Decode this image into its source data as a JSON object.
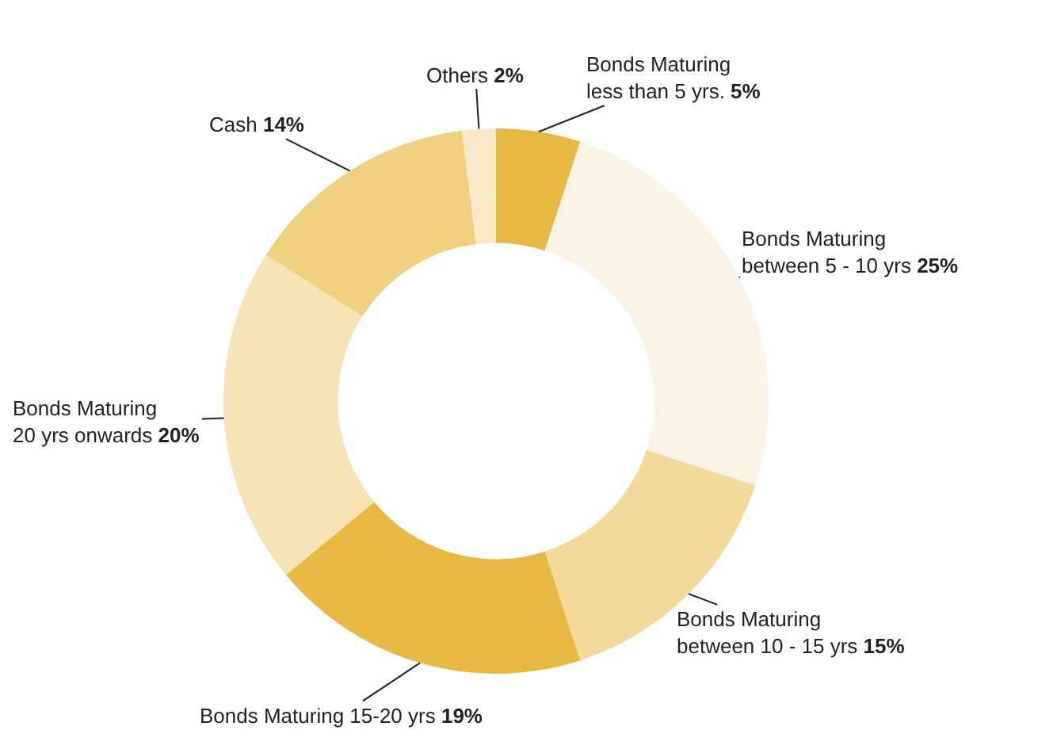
{
  "chart_data": {
    "type": "donut",
    "categories": [
      "Bonds Maturing\nless than 5 yrs.",
      "Bonds Maturing\nbetween 5 - 10 yrs",
      "Bonds Maturing\nbetween 10 - 15 yrs",
      "Bonds Maturing 15-20 yrs",
      "Bonds Maturing\n20 yrs onwards",
      "Cash",
      "Others"
    ],
    "values": [
      5,
      25,
      15,
      19,
      20,
      14,
      2
    ],
    "value_labels": [
      "5%",
      "25%",
      "15%",
      "19%",
      "20%",
      "14%",
      "2%"
    ],
    "colors": [
      "#e8b942",
      "#fbf3e5",
      "#f4da9a",
      "#e8b942",
      "#f6e3b6",
      "#f0d07e",
      "#f9e9c8"
    ],
    "legend": false
  }
}
